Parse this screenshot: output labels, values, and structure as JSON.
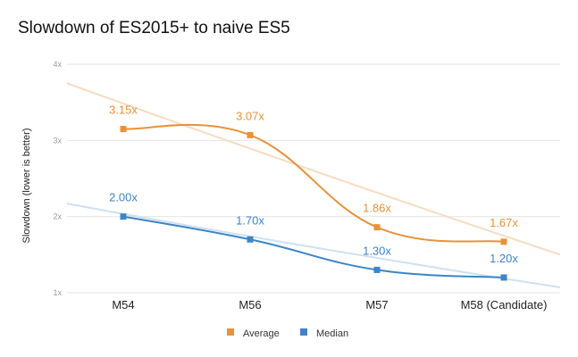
{
  "colors": {
    "average": "#e8923a",
    "median": "#3d85c6",
    "average_trend": "#f6dcc2",
    "median_trend": "#cfe0f2",
    "grid": "#e6e6e6"
  },
  "chart_data": {
    "type": "line",
    "title": "Slowdown of ES2015+ to naive ES5",
    "ylabel": "Slowdown (lower is better)",
    "xlabel": "",
    "categories": [
      "M54",
      "M56",
      "M57",
      "M58 (Candidate)"
    ],
    "ylim": [
      1,
      4
    ],
    "yticks": [
      1,
      2,
      3,
      4
    ],
    "ytick_labels": [
      "1x",
      "2x",
      "3x",
      "4x"
    ],
    "grid": true,
    "legend_position": "bottom-center",
    "series": [
      {
        "name": "Average",
        "values": [
          3.15,
          3.07,
          1.86,
          1.67
        ],
        "labels": [
          "3.15x",
          "3.07x",
          "1.86x",
          "1.67x"
        ],
        "trendline": {
          "start": 3.75,
          "end": 1.5
        }
      },
      {
        "name": "Median",
        "values": [
          2.0,
          1.7,
          1.3,
          1.2
        ],
        "labels": [
          "2.00x",
          "1.70x",
          "1.30x",
          "1.20x"
        ],
        "trendline": {
          "start": 2.17,
          "end": 1.07
        }
      }
    ]
  }
}
